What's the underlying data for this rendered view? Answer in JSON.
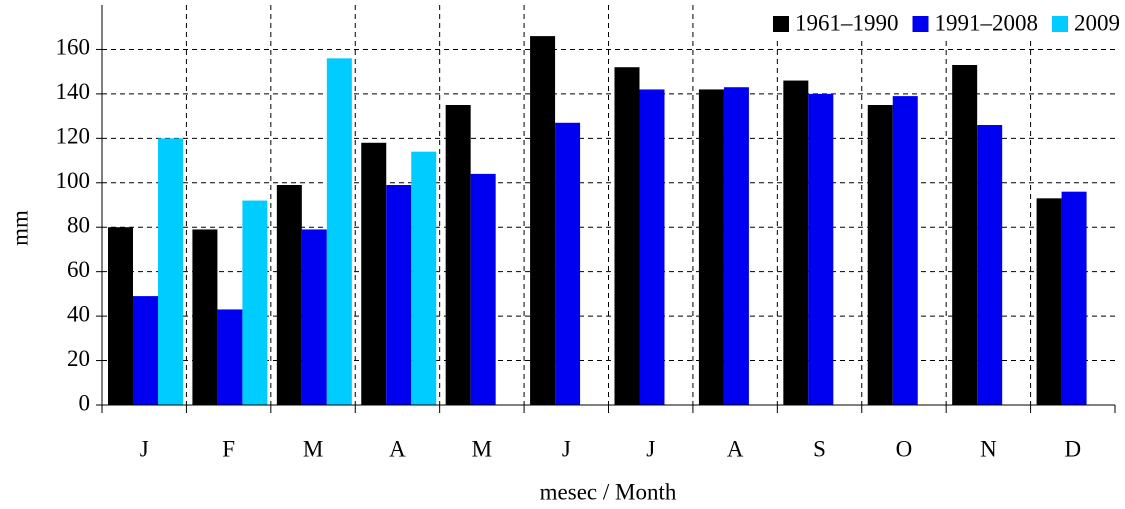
{
  "chart_data": {
    "type": "bar",
    "y_label": "mm",
    "x_label": "mesec / Month",
    "categories": [
      "J",
      "F",
      "M",
      "A",
      "M",
      "J",
      "J",
      "A",
      "S",
      "O",
      "N",
      "D"
    ],
    "series": [
      {
        "name": "1961–1990",
        "color": "#000000",
        "values": [
          80,
          79,
          99,
          118,
          135,
          166,
          152,
          142,
          146,
          135,
          153,
          93
        ]
      },
      {
        "name": "1991–2008",
        "color": "#0000f0",
        "values": [
          49,
          43,
          79,
          99,
          104,
          127,
          142,
          143,
          140,
          139,
          126,
          96
        ]
      },
      {
        "name": "2009",
        "color": "#00ccff",
        "values": [
          120,
          92,
          156,
          114,
          null,
          null,
          null,
          null,
          null,
          null,
          null,
          null
        ]
      }
    ],
    "ylim": [
      0,
      180
    ],
    "yticks": [
      0,
      20,
      40,
      60,
      80,
      100,
      120,
      140,
      160
    ],
    "grid": true,
    "legend": "upper right"
  }
}
